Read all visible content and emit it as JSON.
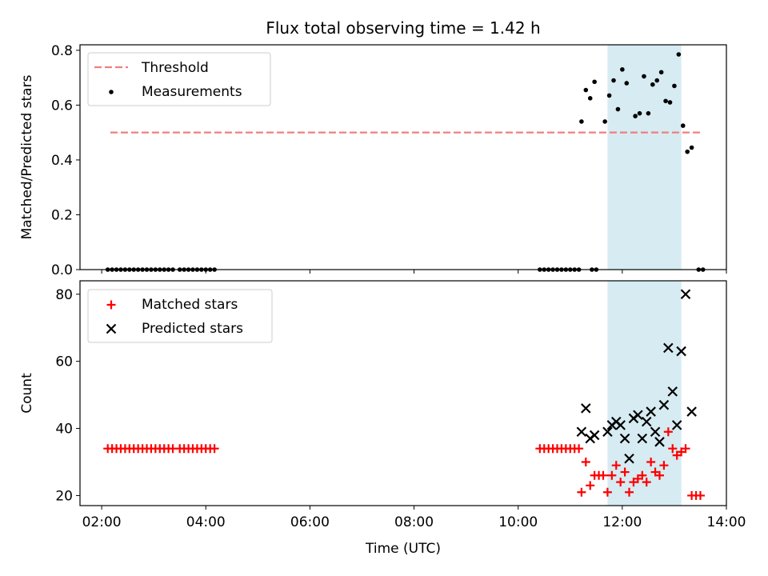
{
  "title": "Flux total observing time = 1.42 h",
  "chart_data": [
    {
      "type": "scatter",
      "panel": "top",
      "ylabel": "Matched/Predicted stars",
      "ylim": [
        0,
        0.82
      ],
      "yticks": [
        0.0,
        0.2,
        0.4,
        0.6,
        0.8
      ],
      "ytick_labels": [
        "0.0",
        "0.2",
        "0.4",
        "0.6",
        "0.8"
      ],
      "legend": {
        "placement": "upper-left",
        "entries": [
          "Threshold",
          "Measurements"
        ]
      },
      "threshold": {
        "name": "Threshold",
        "value": 0.5,
        "x_start": "02:10",
        "x_end": "13:30",
        "color": "#f07f7f",
        "style": "dashed"
      },
      "series": [
        {
          "name": "Measurements",
          "color": "#000000",
          "marker": "dot",
          "x": [
            "02:07",
            "02:12",
            "02:17",
            "02:22",
            "02:27",
            "02:32",
            "02:37",
            "02:42",
            "02:47",
            "02:52",
            "02:57",
            "03:02",
            "03:07",
            "03:12",
            "03:17",
            "03:22",
            "03:30",
            "03:35",
            "03:40",
            "03:45",
            "03:50",
            "03:55",
            "04:00",
            "04:05",
            "04:10",
            "10:25",
            "10:30",
            "10:35",
            "10:40",
            "10:45",
            "10:50",
            "10:55",
            "11:00",
            "11:05",
            "11:10",
            "11:25",
            "11:30",
            "11:13",
            "11:18",
            "11:23",
            "11:28",
            "11:40",
            "11:45",
            "11:50",
            "11:55",
            "12:00",
            "12:05",
            "12:15",
            "12:20",
            "12:25",
            "12:30",
            "12:35",
            "12:40",
            "12:45",
            "12:50",
            "12:55",
            "13:00",
            "13:05",
            "13:10",
            "13:15",
            "13:20",
            "13:28",
            "13:33"
          ],
          "y": [
            0,
            0,
            0,
            0,
            0,
            0,
            0,
            0,
            0,
            0,
            0,
            0,
            0,
            0,
            0,
            0,
            0,
            0,
            0,
            0,
            0,
            0,
            0,
            0,
            0,
            0,
            0,
            0,
            0,
            0,
            0,
            0,
            0,
            0,
            0,
            0,
            0,
            0.54,
            0.655,
            0.625,
            0.685,
            0.54,
            0.635,
            0.69,
            0.585,
            0.73,
            0.68,
            0.56,
            0.57,
            0.705,
            0.57,
            0.675,
            0.69,
            0.72,
            0.615,
            0.61,
            0.67,
            0.785,
            0.525,
            0.43,
            0.445,
            0,
            0
          ]
        }
      ]
    },
    {
      "type": "scatter",
      "panel": "bottom",
      "xlabel": "Time (UTC)",
      "ylabel": "Count",
      "xlim": [
        "01:35",
        "14:00"
      ],
      "xticks": [
        "02:00",
        "04:00",
        "06:00",
        "08:00",
        "10:00",
        "12:00",
        "14:00"
      ],
      "ylim": [
        17,
        84
      ],
      "yticks": [
        20,
        40,
        60,
        80
      ],
      "ytick_labels": [
        "20",
        "40",
        "60",
        "80"
      ],
      "legend": {
        "placement": "upper-left",
        "entries": [
          "Matched stars",
          "Predicted stars"
        ]
      },
      "series": [
        {
          "name": "Matched stars",
          "color": "#ff0000",
          "marker": "plus",
          "x": [
            "02:07",
            "02:12",
            "02:17",
            "02:22",
            "02:27",
            "02:32",
            "02:37",
            "02:42",
            "02:47",
            "02:52",
            "02:57",
            "03:02",
            "03:07",
            "03:12",
            "03:17",
            "03:22",
            "03:30",
            "03:35",
            "03:40",
            "03:45",
            "03:50",
            "03:55",
            "04:00",
            "04:05",
            "04:10",
            "10:25",
            "10:30",
            "10:35",
            "10:40",
            "10:45",
            "10:50",
            "10:55",
            "11:00",
            "11:05",
            "11:10",
            "11:13",
            "11:18",
            "11:23",
            "11:28",
            "11:33",
            "11:38",
            "11:43",
            "11:48",
            "11:53",
            "11:58",
            "12:03",
            "12:08",
            "12:13",
            "12:18",
            "12:23",
            "12:28",
            "12:33",
            "12:38",
            "12:43",
            "12:48",
            "12:53",
            "12:58",
            "13:03",
            "13:08",
            "13:13",
            "13:20",
            "13:25",
            "13:30"
          ],
          "y": [
            34,
            34,
            34,
            34,
            34,
            34,
            34,
            34,
            34,
            34,
            34,
            34,
            34,
            34,
            34,
            34,
            34,
            34,
            34,
            34,
            34,
            34,
            34,
            34,
            34,
            34,
            34,
            34,
            34,
            34,
            34,
            34,
            34,
            34,
            34,
            21,
            30,
            23,
            26,
            26,
            26,
            21,
            26,
            29,
            24,
            27,
            21,
            24,
            25,
            26,
            24,
            30,
            27,
            26,
            29,
            39,
            34,
            32,
            33,
            34,
            20,
            20,
            20
          ]
        },
        {
          "name": "Predicted stars",
          "color": "#000000",
          "marker": "x",
          "x": [
            "11:13",
            "11:18",
            "11:23",
            "11:28",
            "11:43",
            "11:48",
            "11:53",
            "11:58",
            "12:03",
            "12:08",
            "12:13",
            "12:18",
            "12:23",
            "12:28",
            "12:33",
            "12:38",
            "12:43",
            "12:48",
            "12:53",
            "12:58",
            "13:03",
            "13:08",
            "13:13",
            "13:20"
          ],
          "y": [
            39,
            46,
            37,
            38,
            39,
            41,
            42,
            41,
            37,
            31,
            43,
            44,
            37,
            42,
            45,
            39,
            36,
            47,
            64,
            51,
            41,
            63,
            80,
            45
          ]
        }
      ],
      "highlight_span": {
        "from": "11:43",
        "to": "13:08",
        "color": "#add8e6"
      }
    }
  ]
}
